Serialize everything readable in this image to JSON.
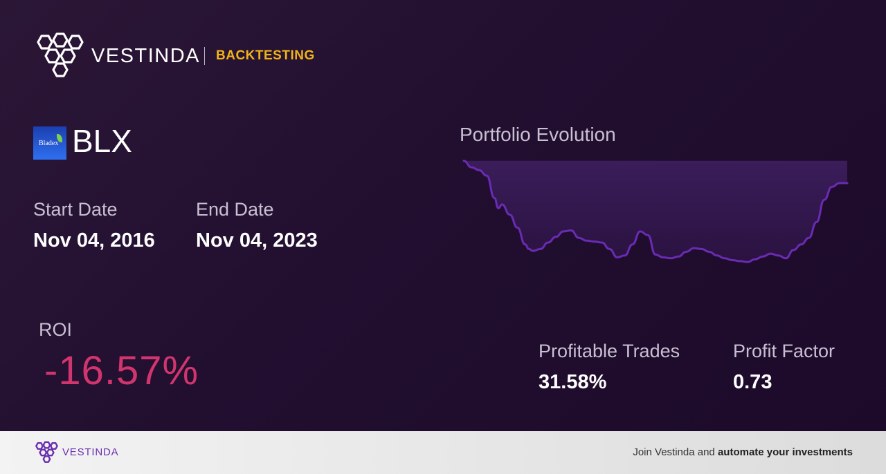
{
  "brand": {
    "name": "VESTINDA",
    "section": "BACKTESTING",
    "logo_icon": "vestinda-hexagon-logo"
  },
  "ticker": {
    "symbol": "BLX",
    "logo_text": "Bladex"
  },
  "dates": {
    "start_label": "Start Date",
    "start_value": "Nov 04, 2016",
    "end_label": "End Date",
    "end_value": "Nov 04, 2023"
  },
  "roi": {
    "label": "ROI",
    "value": "-16.57%"
  },
  "portfolio": {
    "title": "Portfolio Evolution"
  },
  "stats": {
    "profitable_trades_label": "Profitable Trades",
    "profitable_trades_value": "31.58%",
    "profit_factor_label": "Profit Factor",
    "profit_factor_value": "0.73"
  },
  "footer": {
    "brand": "VESTINDA",
    "cta_prefix": "Join Vestinda and ",
    "cta_bold": "automate your investments"
  },
  "colors": {
    "accent": "#f2b318",
    "negative": "#d2356e",
    "line": "#6a2bb3",
    "background": "#220f30"
  },
  "chart_data": {
    "type": "line",
    "x": [
      0,
      0.02,
      0.04,
      0.06,
      0.08,
      0.09,
      0.1,
      0.12,
      0.14,
      0.16,
      0.17,
      0.18,
      0.2,
      0.22,
      0.24,
      0.26,
      0.28,
      0.3,
      0.32,
      0.34,
      0.36,
      0.38,
      0.4,
      0.42,
      0.44,
      0.46,
      0.48,
      0.5,
      0.52,
      0.54,
      0.56,
      0.58,
      0.6,
      0.62,
      0.64,
      0.66,
      0.68,
      0.7,
      0.72,
      0.74,
      0.76,
      0.78,
      0.8,
      0.82,
      0.84,
      0.86,
      0.88,
      0.9,
      0.92,
      0.94,
      0.96,
      0.98,
      1.0
    ],
    "values": [
      100,
      93,
      90,
      84,
      60,
      49,
      53,
      42,
      28,
      10,
      5,
      3,
      5,
      12,
      18,
      24,
      25,
      17,
      14,
      13,
      12,
      5,
      -4,
      -2,
      10,
      24,
      20,
      -1,
      -4,
      -5,
      -3,
      2,
      6,
      5,
      2,
      -2,
      -5,
      -7,
      -8,
      -9,
      -6,
      -3,
      0,
      -2,
      -5,
      4,
      10,
      17,
      34,
      58,
      72,
      76,
      76
    ],
    "title": "Portfolio Evolution",
    "ylim": [
      -20,
      105
    ],
    "grid": false
  }
}
